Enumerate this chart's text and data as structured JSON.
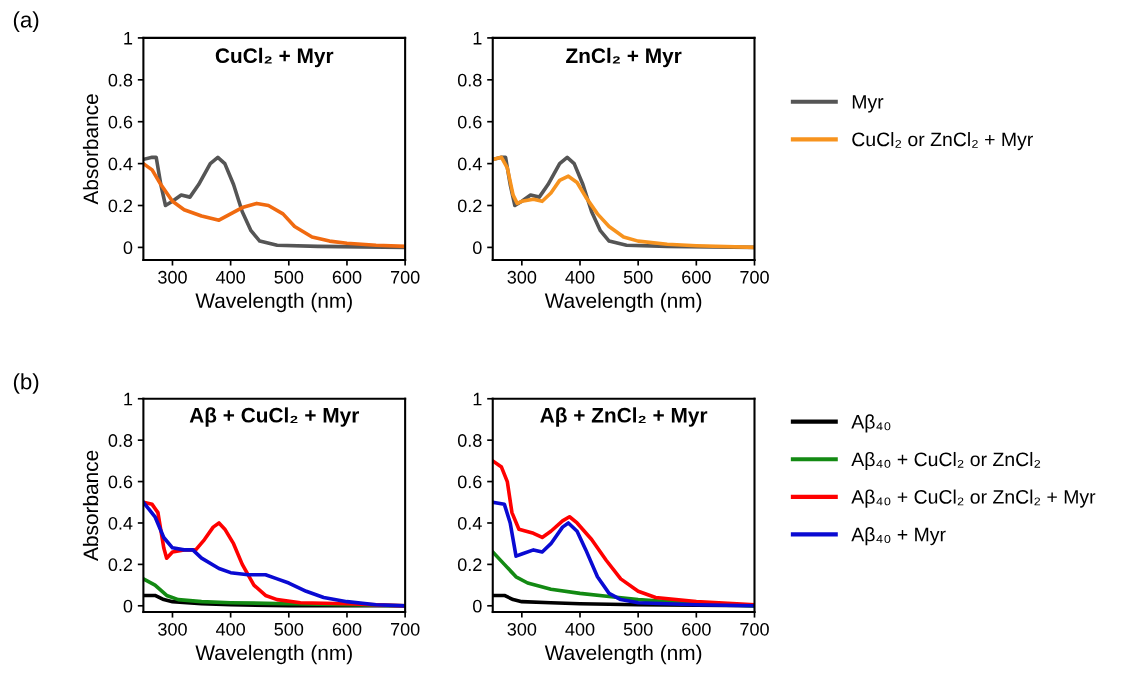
{
  "chart_data": [
    {
      "type": "line",
      "title": "CuCl₂ + Myr",
      "xlabel": "Wavelength (nm)",
      "ylabel": "Absorbance",
      "annotations": [
        "(a)"
      ],
      "xlim": [
        250,
        700
      ],
      "ylim": [
        -0.06,
        1
      ],
      "xticks": [
        300,
        400,
        500,
        600,
        700
      ],
      "yticks": [
        0,
        0.2,
        0.4,
        0.6,
        0.8,
        1
      ],
      "grid": false,
      "legend": false,
      "series": [
        {
          "color": "#555555",
          "x": [
            250,
            265,
            272,
            280,
            288,
            300,
            315,
            330,
            345,
            365,
            378,
            390,
            405,
            420,
            435,
            450,
            480,
            550,
            700
          ],
          "values": [
            0.42,
            0.43,
            0.43,
            0.3,
            0.2,
            0.22,
            0.25,
            0.24,
            0.3,
            0.4,
            0.43,
            0.4,
            0.3,
            0.17,
            0.08,
            0.03,
            0.01,
            0.005,
            0
          ]
        },
        {
          "color": "#f06a10",
          "x": [
            250,
            265,
            280,
            300,
            320,
            350,
            380,
            400,
            420,
            445,
            465,
            490,
            510,
            540,
            570,
            600,
            650,
            700
          ],
          "values": [
            0.4,
            0.37,
            0.3,
            0.22,
            0.18,
            0.15,
            0.13,
            0.16,
            0.19,
            0.21,
            0.2,
            0.16,
            0.1,
            0.05,
            0.03,
            0.02,
            0.01,
            0.005
          ]
        }
      ]
    },
    {
      "type": "line",
      "title": "ZnCl₂ + Myr",
      "xlabel": "Wavelength (nm)",
      "xlim": [
        250,
        700
      ],
      "ylim": [
        -0.06,
        1
      ],
      "xticks": [
        300,
        400,
        500,
        600,
        700
      ],
      "yticks": [
        0,
        0.2,
        0.4,
        0.6,
        0.8,
        1
      ],
      "grid": false,
      "legend": "right",
      "series": [
        {
          "name": "Myr",
          "color": "#555555",
          "x": [
            250,
            265,
            272,
            280,
            288,
            300,
            315,
            330,
            345,
            365,
            378,
            390,
            405,
            420,
            435,
            450,
            480,
            550,
            700
          ],
          "values": [
            0.42,
            0.43,
            0.43,
            0.3,
            0.2,
            0.22,
            0.25,
            0.24,
            0.3,
            0.4,
            0.43,
            0.4,
            0.3,
            0.17,
            0.08,
            0.03,
            0.01,
            0.005,
            0
          ]
        },
        {
          "name": "CuCl₂ or ZnCl₂ + Myr",
          "color": "#f7931e",
          "x": [
            250,
            265,
            275,
            285,
            292,
            300,
            320,
            335,
            350,
            365,
            380,
            395,
            410,
            430,
            450,
            475,
            500,
            550,
            600,
            700
          ],
          "values": [
            0.42,
            0.43,
            0.38,
            0.25,
            0.21,
            0.22,
            0.23,
            0.22,
            0.26,
            0.32,
            0.34,
            0.31,
            0.24,
            0.16,
            0.1,
            0.05,
            0.03,
            0.015,
            0.008,
            0
          ]
        }
      ]
    },
    {
      "type": "line",
      "title": "Aβ + CuCl₂ + Myr",
      "xlabel": "Wavelength (nm)",
      "ylabel": "Absorbance",
      "annotations": [
        "(b)"
      ],
      "xlim": [
        250,
        700
      ],
      "ylim": [
        -0.03,
        1
      ],
      "xticks": [
        300,
        400,
        500,
        600,
        700
      ],
      "yticks": [
        0,
        0.2,
        0.4,
        0.6,
        0.8,
        1
      ],
      "grid": false,
      "legend": false,
      "series": [
        {
          "color": "#000000",
          "x": [
            250,
            270,
            285,
            300,
            350,
            400,
            500,
            700
          ],
          "values": [
            0.05,
            0.05,
            0.03,
            0.02,
            0.01,
            0.005,
            0,
            0
          ]
        },
        {
          "color": "#138a13",
          "x": [
            250,
            270,
            290,
            310,
            350,
            400,
            500,
            600,
            700
          ],
          "values": [
            0.13,
            0.1,
            0.05,
            0.03,
            0.02,
            0.015,
            0.01,
            0.005,
            0
          ]
        },
        {
          "color": "#ff0000",
          "x": [
            250,
            265,
            275,
            285,
            290,
            300,
            320,
            340,
            355,
            370,
            380,
            390,
            405,
            420,
            440,
            460,
            480,
            520,
            600,
            700
          ],
          "values": [
            0.5,
            0.49,
            0.45,
            0.28,
            0.23,
            0.26,
            0.27,
            0.27,
            0.32,
            0.38,
            0.4,
            0.37,
            0.3,
            0.2,
            0.1,
            0.05,
            0.03,
            0.015,
            0.01,
            0
          ]
        },
        {
          "color": "#0a0ad2",
          "x": [
            250,
            270,
            285,
            300,
            320,
            335,
            350,
            380,
            400,
            430,
            460,
            480,
            500,
            530,
            560,
            600,
            650,
            700
          ],
          "values": [
            0.5,
            0.43,
            0.33,
            0.28,
            0.27,
            0.27,
            0.23,
            0.18,
            0.16,
            0.15,
            0.15,
            0.13,
            0.11,
            0.07,
            0.04,
            0.02,
            0.005,
            0
          ]
        }
      ]
    },
    {
      "type": "line",
      "title": "Aβ + ZnCl₂ + Myr",
      "xlabel": "Wavelength (nm)",
      "xlim": [
        250,
        700
      ],
      "ylim": [
        -0.03,
        1
      ],
      "xticks": [
        300,
        400,
        500,
        600,
        700
      ],
      "yticks": [
        0,
        0.2,
        0.4,
        0.6,
        0.8,
        1
      ],
      "grid": false,
      "legend": "right",
      "series": [
        {
          "name": "Aβ₄₀",
          "color": "#000000",
          "x": [
            250,
            270,
            285,
            300,
            350,
            400,
            500,
            700
          ],
          "values": [
            0.05,
            0.05,
            0.03,
            0.02,
            0.015,
            0.01,
            0.005,
            0
          ]
        },
        {
          "name": "Aβ₄₀ + CuCl₂ or ZnCl₂",
          "color": "#138a13",
          "x": [
            250,
            270,
            290,
            310,
            350,
            400,
            450,
            500,
            550,
            700
          ],
          "values": [
            0.26,
            0.2,
            0.14,
            0.11,
            0.08,
            0.06,
            0.045,
            0.03,
            0.02,
            0
          ]
        },
        {
          "name": "Aβ₄₀ + CuCl₂ or ZnCl₂ + Myr",
          "color": "#ff0000",
          "x": [
            250,
            265,
            275,
            283,
            295,
            320,
            335,
            350,
            370,
            382,
            395,
            420,
            445,
            470,
            500,
            530,
            600,
            700
          ],
          "values": [
            0.7,
            0.67,
            0.6,
            0.45,
            0.37,
            0.35,
            0.33,
            0.36,
            0.41,
            0.43,
            0.4,
            0.32,
            0.22,
            0.13,
            0.07,
            0.04,
            0.02,
            0.005
          ]
        },
        {
          "name": "Aβ₄₀ + Myr",
          "color": "#0a0ad2",
          "x": [
            250,
            270,
            280,
            290,
            300,
            320,
            335,
            350,
            370,
            380,
            395,
            410,
            430,
            450,
            470,
            500,
            600,
            700
          ],
          "values": [
            0.5,
            0.49,
            0.4,
            0.24,
            0.25,
            0.27,
            0.26,
            0.3,
            0.38,
            0.4,
            0.36,
            0.27,
            0.14,
            0.06,
            0.03,
            0.015,
            0.005,
            0
          ]
        }
      ]
    }
  ]
}
